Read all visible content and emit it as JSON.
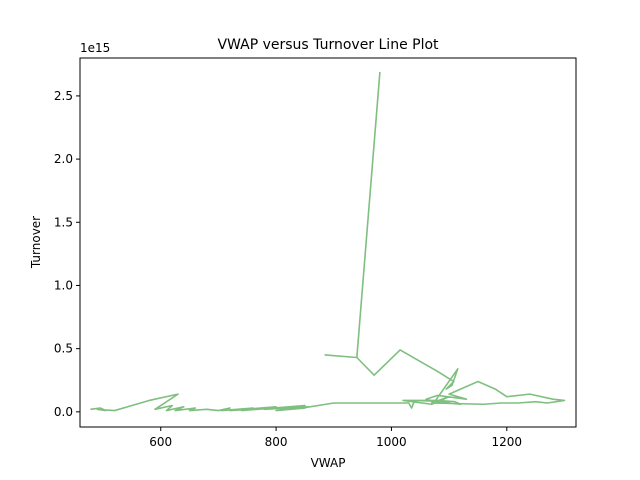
{
  "chart_data": {
    "type": "line",
    "title": "VWAP versus Turnover Line Plot",
    "xlabel": "VWAP",
    "ylabel": "Turnover",
    "y_offset_text": "1e15",
    "xlim": [
      460,
      1320
    ],
    "ylim": [
      -0.12,
      2.8
    ],
    "xticks": [
      600,
      800,
      1000,
      1200
    ],
    "yticks": [
      0.0,
      0.5,
      1.0,
      1.5,
      2.0,
      2.5
    ],
    "ytick_labels": [
      "0.0",
      "0.5",
      "1.0",
      "1.5",
      "2.0",
      "2.5"
    ],
    "grid": false,
    "series": [
      {
        "color": "#7fbf7f",
        "x": [
          478,
          495,
          505,
          490,
          520,
          580,
          630,
          600,
          590,
          620,
          610,
          640,
          625,
          660,
          650,
          680,
          700,
          720,
          705,
          760,
          740,
          800,
          720,
          790,
          740,
          850,
          780,
          855,
          800,
          850,
          810,
          845,
          900,
          1030,
          1035,
          1040,
          1100,
          1090,
          1070,
          1120,
          1110,
          1080,
          1020,
          1070,
          1100,
          1070,
          1160,
          1190,
          1220,
          1250,
          1270,
          1300,
          1280,
          1240,
          1200,
          1180,
          1150,
          1100,
          1130,
          1080,
          1060,
          1075,
          1115,
          1105,
          1095,
          1108,
          1080,
          1015,
          970,
          940,
          885,
          940,
          980
        ],
        "y": [
          0.02,
          0.03,
          0.01,
          0.02,
          0.01,
          0.09,
          0.14,
          0.05,
          0.02,
          0.05,
          0.01,
          0.04,
          0.01,
          0.03,
          0.01,
          0.02,
          0.01,
          0.03,
          0.01,
          0.03,
          0.01,
          0.04,
          0.01,
          0.03,
          0.01,
          0.05,
          0.02,
          0.04,
          0.01,
          0.03,
          0.02,
          0.03,
          0.07,
          0.07,
          0.03,
          0.09,
          0.08,
          0.07,
          0.08,
          0.06,
          0.08,
          0.09,
          0.09,
          0.06,
          0.12,
          0.07,
          0.06,
          0.07,
          0.07,
          0.08,
          0.07,
          0.09,
          0.1,
          0.14,
          0.12,
          0.18,
          0.24,
          0.14,
          0.1,
          0.13,
          0.1,
          0.08,
          0.34,
          0.21,
          0.18,
          0.24,
          0.32,
          0.49,
          0.29,
          0.43,
          0.45,
          0.43,
          2.69
        ]
      }
    ]
  }
}
